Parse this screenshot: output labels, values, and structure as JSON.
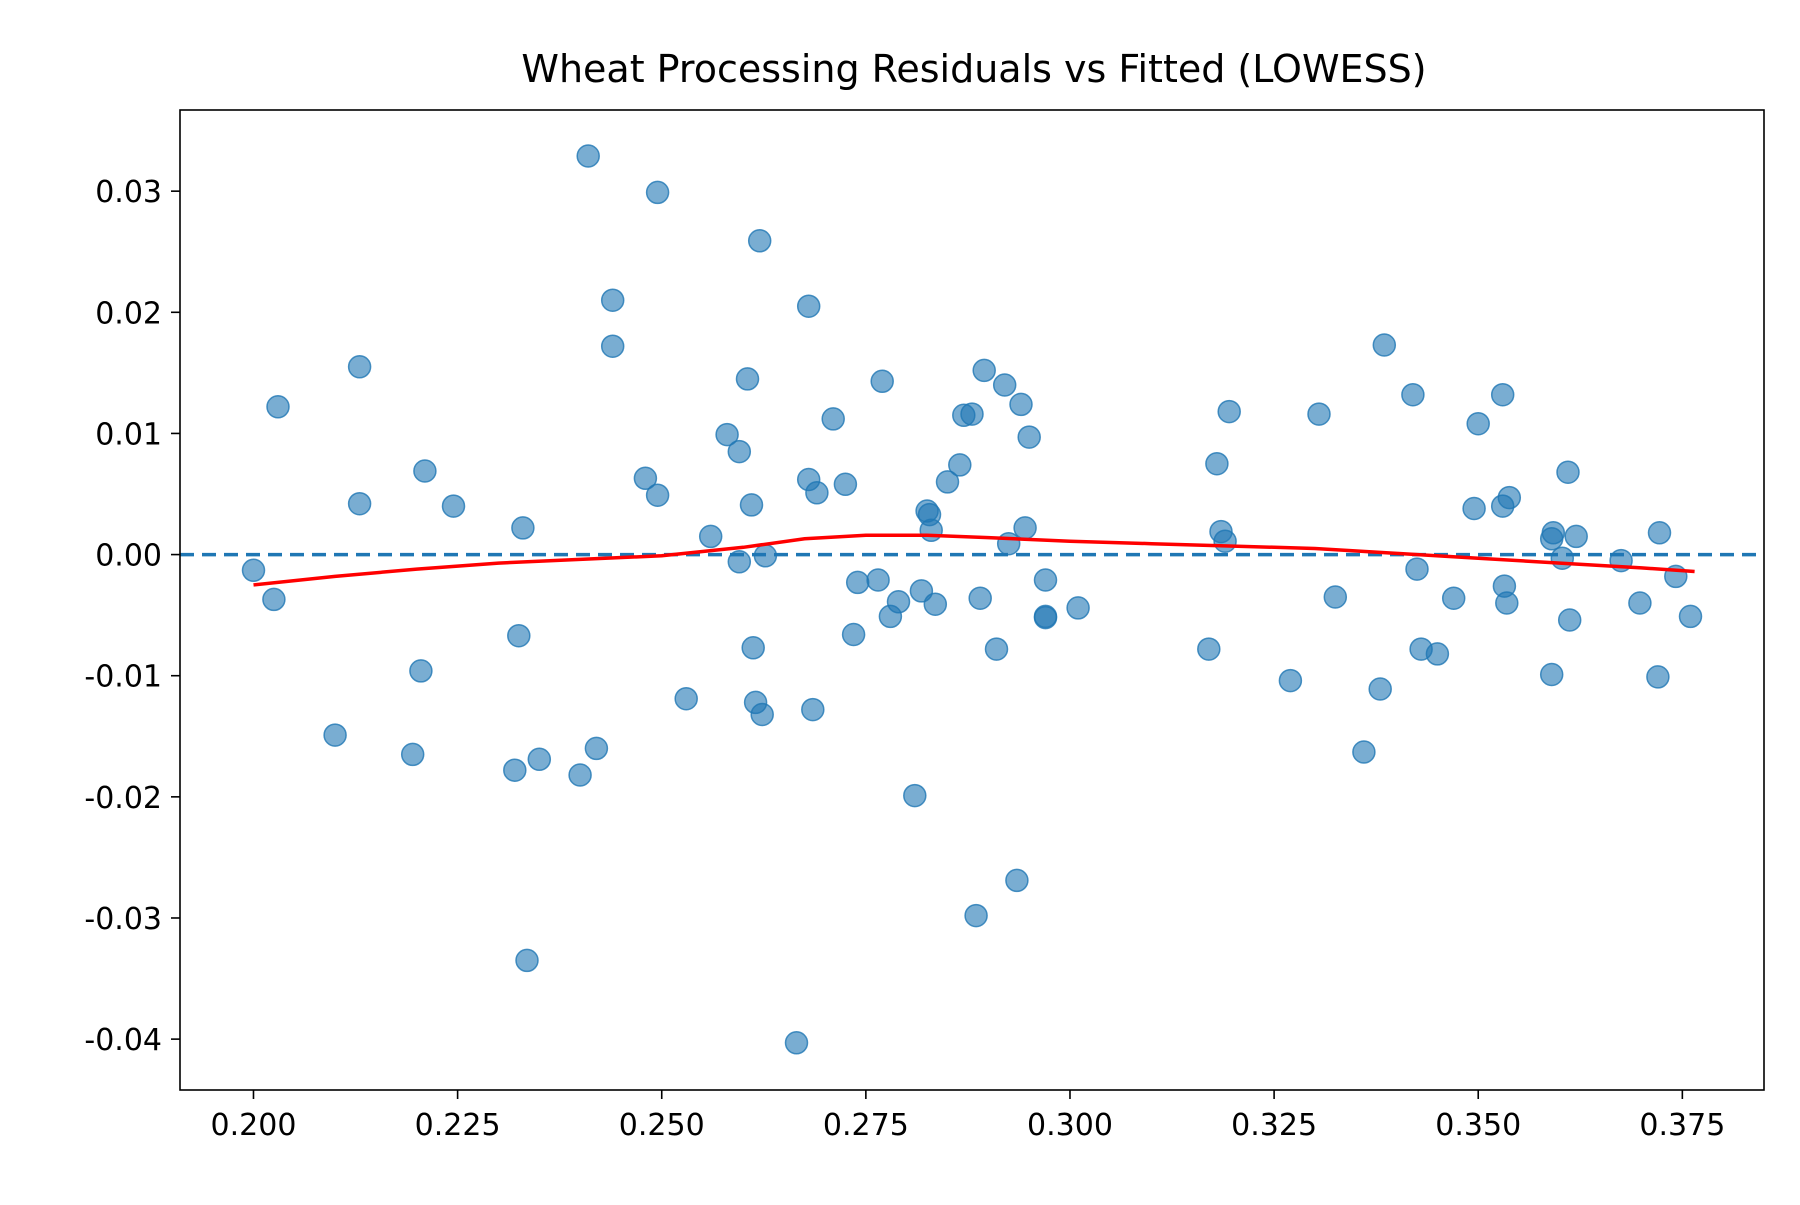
{
  "chart_data": {
    "type": "scatter",
    "title": "Wheat Processing Residuals vs Fitted (LOWESS)",
    "xlabel": "",
    "ylabel": "",
    "xlim": [
      0.191,
      0.385
    ],
    "ylim": [
      -0.0442,
      0.0367
    ],
    "x_ticks": [
      0.2,
      0.225,
      0.25,
      0.275,
      0.3,
      0.325,
      0.35,
      0.375
    ],
    "x_tick_labels": [
      "0.200",
      "0.225",
      "0.250",
      "0.275",
      "0.300",
      "0.325",
      "0.350",
      "0.375"
    ],
    "y_ticks": [
      0.03,
      0.02,
      0.01,
      0.0,
      -0.01,
      -0.02,
      -0.03,
      -0.04
    ],
    "y_tick_labels": [
      "0.03",
      "0.02",
      "0.01",
      "0.00",
      "-0.01",
      "-0.02",
      "-0.03",
      "-0.04"
    ],
    "grid": false,
    "zero_line": {
      "y": 0,
      "color": "#1f77b4",
      "style": "dashed"
    },
    "points_color": "#1f77b4",
    "lowess_color": "#ff0000",
    "points": [
      [
        0.2,
        -0.0013
      ],
      [
        0.2025,
        -0.0037
      ],
      [
        0.203,
        0.0122
      ],
      [
        0.21,
        -0.0149
      ],
      [
        0.213,
        0.0155
      ],
      [
        0.213,
        0.0042
      ],
      [
        0.2195,
        -0.0165
      ],
      [
        0.2205,
        -0.0096
      ],
      [
        0.221,
        0.0069
      ],
      [
        0.2245,
        0.004
      ],
      [
        0.232,
        -0.0178
      ],
      [
        0.2325,
        -0.0067
      ],
      [
        0.233,
        0.0022
      ],
      [
        0.2335,
        -0.0335
      ],
      [
        0.235,
        -0.0169
      ],
      [
        0.24,
        -0.0182
      ],
      [
        0.241,
        0.0329
      ],
      [
        0.242,
        -0.016
      ],
      [
        0.244,
        0.021
      ],
      [
        0.244,
        0.0172
      ],
      [
        0.248,
        0.0063
      ],
      [
        0.2495,
        0.0299
      ],
      [
        0.2495,
        0.0049
      ],
      [
        0.253,
        -0.0119
      ],
      [
        0.256,
        0.0015
      ],
      [
        0.258,
        0.0099
      ],
      [
        0.2595,
        0.0085
      ],
      [
        0.2595,
        -0.0006
      ],
      [
        0.2605,
        0.0145
      ],
      [
        0.261,
        0.0041
      ],
      [
        0.2612,
        -0.0077
      ],
      [
        0.2615,
        -0.0122
      ],
      [
        0.262,
        0.0259
      ],
      [
        0.2623,
        -0.0132
      ],
      [
        0.2627,
        -0.0001
      ],
      [
        0.2665,
        -0.0403
      ],
      [
        0.268,
        0.0205
      ],
      [
        0.268,
        0.0062
      ],
      [
        0.2685,
        -0.0128
      ],
      [
        0.269,
        0.0051
      ],
      [
        0.271,
        0.0112
      ],
      [
        0.2725,
        0.0058
      ],
      [
        0.2735,
        -0.0066
      ],
      [
        0.274,
        -0.0023
      ],
      [
        0.2765,
        -0.0021
      ],
      [
        0.277,
        0.0143
      ],
      [
        0.278,
        -0.0051
      ],
      [
        0.279,
        -0.0039
      ],
      [
        0.281,
        -0.0199
      ],
      [
        0.2818,
        -0.003
      ],
      [
        0.2825,
        0.0036
      ],
      [
        0.2828,
        0.0033
      ],
      [
        0.283,
        0.002
      ],
      [
        0.2835,
        -0.0041
      ],
      [
        0.285,
        0.006
      ],
      [
        0.2865,
        0.0074
      ],
      [
        0.287,
        0.0115
      ],
      [
        0.288,
        0.0116
      ],
      [
        0.2885,
        -0.0298
      ],
      [
        0.289,
        -0.0036
      ],
      [
        0.2895,
        0.0152
      ],
      [
        0.291,
        -0.0078
      ],
      [
        0.292,
        0.014
      ],
      [
        0.2925,
        0.0009
      ],
      [
        0.2935,
        -0.0269
      ],
      [
        0.294,
        0.0124
      ],
      [
        0.2945,
        0.0022
      ],
      [
        0.295,
        0.0097
      ],
      [
        0.297,
        -0.0051
      ],
      [
        0.297,
        -0.0052
      ],
      [
        0.297,
        -0.0021
      ],
      [
        0.301,
        -0.0044
      ],
      [
        0.317,
        -0.0078
      ],
      [
        0.318,
        0.0075
      ],
      [
        0.3185,
        0.0019
      ],
      [
        0.319,
        0.0011
      ],
      [
        0.3195,
        0.0118
      ],
      [
        0.327,
        -0.0104
      ],
      [
        0.3305,
        0.0116
      ],
      [
        0.3325,
        -0.0035
      ],
      [
        0.336,
        -0.0163
      ],
      [
        0.338,
        -0.0111
      ],
      [
        0.3385,
        0.0173
      ],
      [
        0.342,
        0.0132
      ],
      [
        0.3425,
        -0.0012
      ],
      [
        0.343,
        -0.0078
      ],
      [
        0.345,
        -0.0082
      ],
      [
        0.347,
        -0.0036
      ],
      [
        0.3495,
        0.0038
      ],
      [
        0.35,
        0.0108
      ],
      [
        0.353,
        0.0132
      ],
      [
        0.353,
        0.004
      ],
      [
        0.3532,
        -0.0026
      ],
      [
        0.3535,
        -0.004
      ],
      [
        0.3538,
        0.0047
      ],
      [
        0.359,
        -0.0099
      ],
      [
        0.359,
        0.0013
      ],
      [
        0.3592,
        0.0018
      ],
      [
        0.3603,
        -0.0003
      ],
      [
        0.361,
        0.0068
      ],
      [
        0.3612,
        -0.0054
      ],
      [
        0.362,
        0.0015
      ],
      [
        0.3675,
        -0.0005
      ],
      [
        0.3698,
        -0.004
      ],
      [
        0.372,
        -0.0101
      ],
      [
        0.3722,
        0.0018
      ],
      [
        0.3742,
        -0.0018
      ],
      [
        0.376,
        -0.0051
      ]
    ],
    "lowess": [
      [
        0.2,
        -0.0025
      ],
      [
        0.21,
        -0.0018
      ],
      [
        0.22,
        -0.0012
      ],
      [
        0.23,
        -0.0007
      ],
      [
        0.24,
        -0.0004
      ],
      [
        0.25,
        -0.0001
      ],
      [
        0.26,
        0.0006
      ],
      [
        0.2675,
        0.0013
      ],
      [
        0.275,
        0.0016
      ],
      [
        0.2825,
        0.0016
      ],
      [
        0.29,
        0.0014
      ],
      [
        0.3,
        0.0011
      ],
      [
        0.31,
        0.0009
      ],
      [
        0.32,
        0.0007
      ],
      [
        0.33,
        0.0005
      ],
      [
        0.34,
        0.0001
      ],
      [
        0.35,
        -0.0003
      ],
      [
        0.36,
        -0.0007
      ],
      [
        0.37,
        -0.0011
      ],
      [
        0.3765,
        -0.0014
      ]
    ]
  }
}
